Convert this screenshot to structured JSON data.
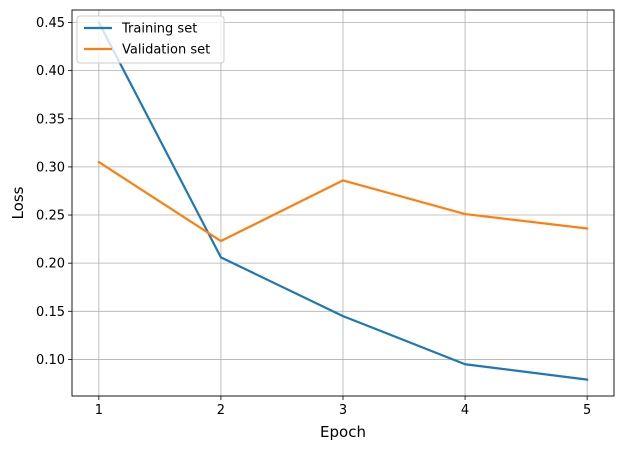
{
  "chart_data": {
    "type": "line",
    "title": "",
    "xlabel": "Epoch",
    "ylabel": "Loss",
    "x": [
      1,
      2,
      3,
      4,
      5
    ],
    "xticks": [
      "1",
      "2",
      "3",
      "4",
      "5"
    ],
    "yticks": [
      "0.10",
      "0.15",
      "0.20",
      "0.25",
      "0.30",
      "0.35",
      "0.40",
      "0.45"
    ],
    "xlim": [
      0.78,
      5.22
    ],
    "ylim": [
      0.062,
      0.463
    ],
    "grid": true,
    "legend_position": "top-left",
    "series": [
      {
        "name": "Training set",
        "color": "#1f77b4",
        "values": [
          0.45,
          0.206,
          0.145,
          0.095,
          0.079
        ]
      },
      {
        "name": "Validation set",
        "color": "#ff7f0e",
        "values": [
          0.305,
          0.223,
          0.286,
          0.251,
          0.236
        ]
      }
    ]
  }
}
